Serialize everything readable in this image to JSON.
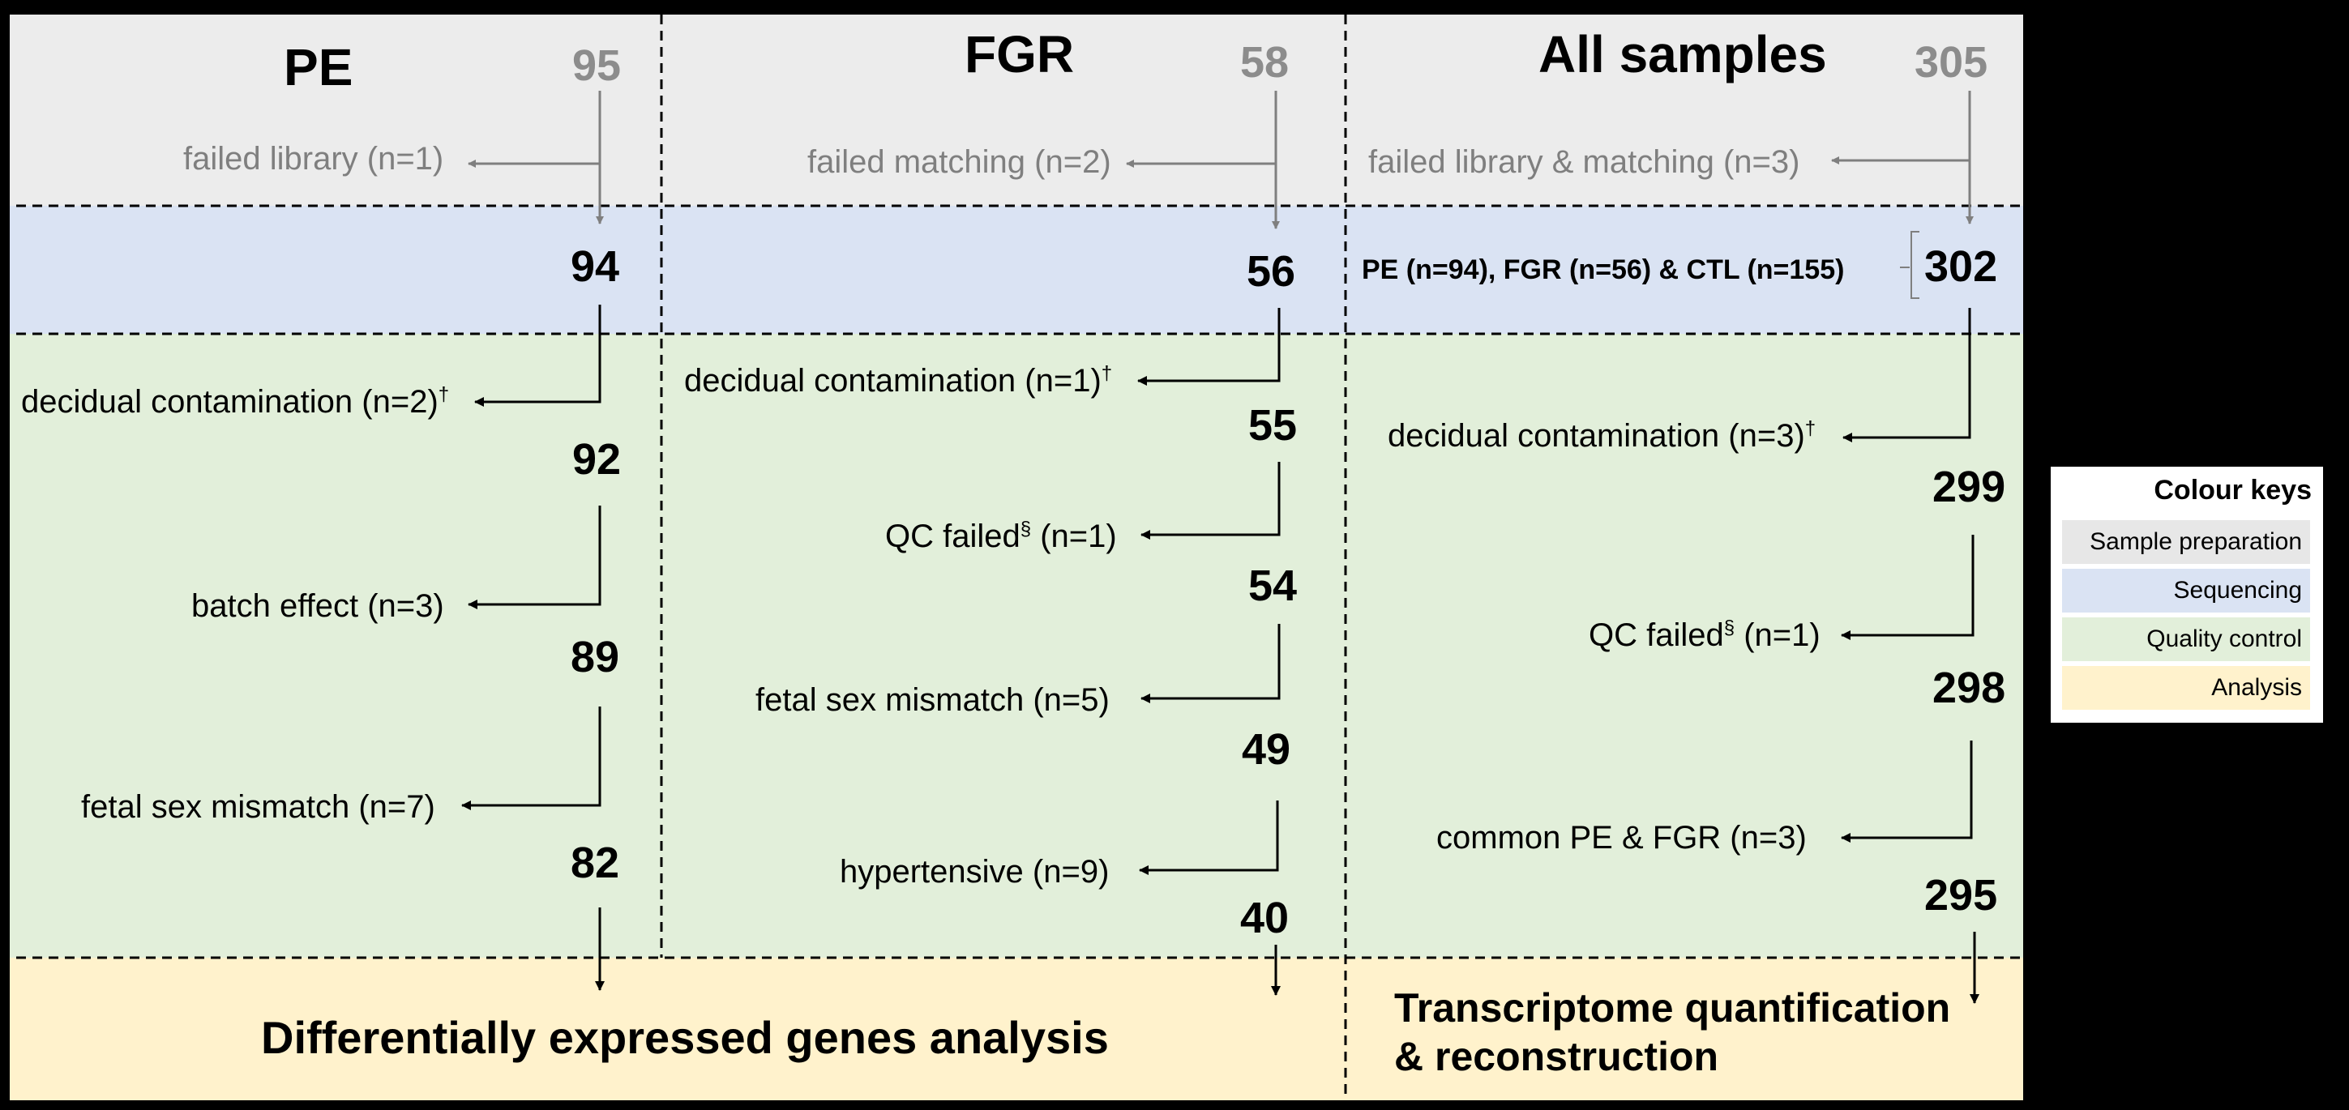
{
  "columns": {
    "pe": {
      "title": "PE",
      "count": "95"
    },
    "fgr": {
      "title": "FGR",
      "count": "58"
    },
    "all": {
      "title": "All samples",
      "count": "305"
    }
  },
  "sample_prep": {
    "pe_excluded": "failed library (n=1)",
    "fgr_excluded": "failed matching (n=2)",
    "all_excluded": "failed library & matching (n=3)"
  },
  "sequencing": {
    "pe_count": "94",
    "fgr_count": "56",
    "all_breakdown": "PE (n=94), FGR (n=56) & CTL (n=155)",
    "all_count": "302"
  },
  "quality_control": {
    "pe": [
      {
        "excluded": "decidual contamination (n=2)",
        "mark": "†",
        "remaining": "92"
      },
      {
        "excluded": "batch effect (n=3)",
        "mark": "",
        "remaining": "89"
      },
      {
        "excluded": "fetal sex mismatch (n=7)",
        "mark": "",
        "remaining": "82"
      }
    ],
    "fgr": [
      {
        "excluded": "decidual contamination (n=1)",
        "mark": "†",
        "remaining": "55"
      },
      {
        "excluded_pre": "QC failed",
        "mark": "§",
        "excluded_post": " (n=1)",
        "remaining": "54"
      },
      {
        "excluded": "fetal sex mismatch (n=5)",
        "mark": "",
        "remaining": "49"
      },
      {
        "excluded": "hypertensive (n=9)",
        "mark": "",
        "remaining": "40"
      }
    ],
    "all": [
      {
        "excluded": "decidual contamination (n=3)",
        "mark": "†",
        "remaining": "299"
      },
      {
        "excluded_pre": "QC failed",
        "mark": "§",
        "excluded_post": " (n=1)",
        "remaining": "298"
      },
      {
        "excluded": "common PE & FGR (n=3)",
        "mark": "",
        "remaining": "295"
      }
    ]
  },
  "analysis": {
    "left": "Differentially expressed genes analysis",
    "right_line1": "Transcriptome quantification",
    "right_line2": "& reconstruction"
  },
  "legend": {
    "title": "Colour keys",
    "items": [
      {
        "label": "Sample preparation",
        "color": "#e7e7e7"
      },
      {
        "label": "Sequencing",
        "color": "#dae3f3"
      },
      {
        "label": "Quality control",
        "color": "#e2efda"
      },
      {
        "label": "Analysis",
        "color": "#fff2cc"
      }
    ]
  },
  "colors": {
    "sample_preparation": "#ececec",
    "sequencing": "#dae3f3",
    "quality_control": "#e2efda",
    "analysis": "#fff2cc",
    "grey_text": "#7f7f7f"
  }
}
